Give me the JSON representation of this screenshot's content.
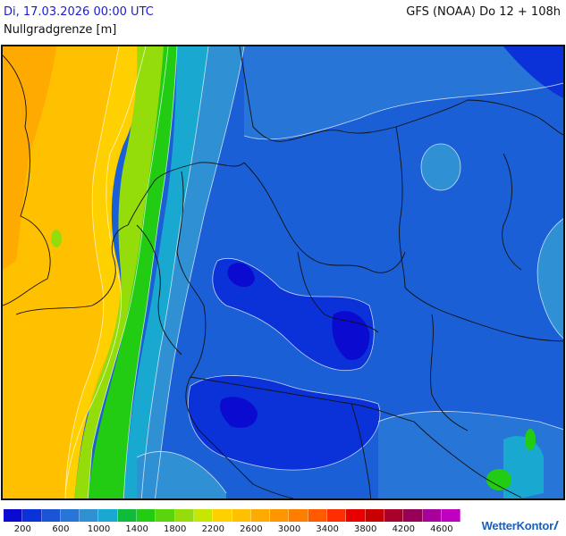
{
  "header": {
    "datetime": "Di, 17.03.2026 00:00 UTC",
    "variable": "Nullgradgrenze [m]",
    "model_run": "GFS (NOAA) Do 12 + 108h"
  },
  "legend": {
    "colors": [
      "#0a0ad0",
      "#0b32d8",
      "#1a55d6",
      "#2775d6",
      "#2f90d4",
      "#19a8d0",
      "#0ebc3a",
      "#22cc12",
      "#5ad40c",
      "#94dc0a",
      "#c6e604",
      "#ffd000",
      "#ffc000",
      "#ffaa00",
      "#ff9600",
      "#ff7e00",
      "#ff5a00",
      "#ff2e00",
      "#e80000",
      "#c80000",
      "#a8002a",
      "#980058",
      "#a8009a",
      "#c000c0"
    ],
    "tick_labels": [
      "200",
      "600",
      "1000",
      "1400",
      "1800",
      "2200",
      "2600",
      "3000",
      "3400",
      "3800",
      "4200",
      "4600"
    ]
  },
  "brand": {
    "name_part1": "Wetter",
    "name_part2": "Kontor"
  }
}
